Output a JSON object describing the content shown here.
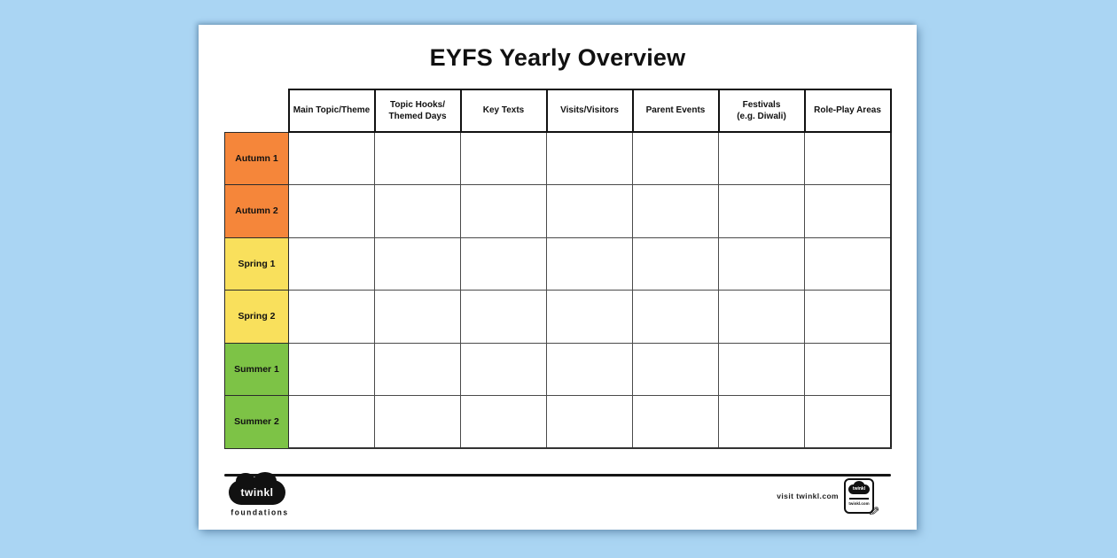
{
  "page": {
    "title": "EYFS Yearly Overview"
  },
  "table": {
    "columns": [
      "Main Topic/Theme",
      "Topic Hooks/\nThemed Days",
      "Key Texts",
      "Visits/Visitors",
      "Parent Events",
      "Festivals\n(e.g. Diwali)",
      "Role-Play Areas"
    ],
    "rows": [
      {
        "label": "Autumn 1",
        "color": "#F5863A"
      },
      {
        "label": "Autumn 2",
        "color": "#F5863A"
      },
      {
        "label": "Spring 1",
        "color": "#F9E05C"
      },
      {
        "label": "Spring 2",
        "color": "#F9E05C"
      },
      {
        "label": "Summer 1",
        "color": "#7DC346"
      },
      {
        "label": "Summer 2",
        "color": "#7DC346"
      }
    ],
    "cells_empty": true
  },
  "footer": {
    "brand_name": "twinkl",
    "brand_sub": "foundations",
    "visit_text": "visit twinkl.com",
    "badge_brand": "twinkl",
    "badge_sub": "twinkl.com"
  },
  "colors": {
    "background_blue": "#AAD5F3",
    "autumn_orange": "#F5863A",
    "spring_yellow": "#F9E05C",
    "summer_green": "#7DC346",
    "ink": "#111111"
  }
}
